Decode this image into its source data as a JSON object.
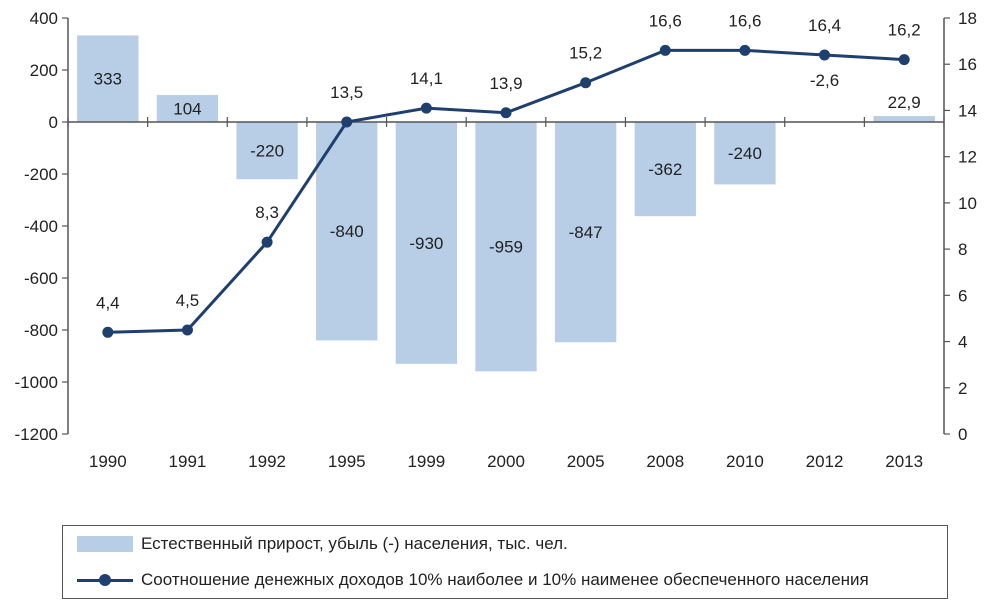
{
  "chart_data": {
    "type": "bar",
    "categories": [
      "1990",
      "1991",
      "1992",
      "1995",
      "1999",
      "2000",
      "2005",
      "2008",
      "2010",
      "2012",
      "2013"
    ],
    "series": [
      {
        "type": "bar",
        "axis": "left",
        "name": "Естественный прирост, убыль (-) населения, тыс. чел.",
        "values": [
          333,
          104,
          -220,
          -840,
          -930,
          -959,
          -847,
          -362,
          -240,
          -2.6,
          22.9
        ],
        "labels": [
          "333",
          "104",
          "-220",
          "-840",
          "-930",
          "-959",
          "-847",
          "-362",
          "-240",
          "-2,6",
          "22,9"
        ],
        "color": "#b8cde6"
      },
      {
        "type": "line",
        "axis": "right",
        "name": "Соотношение денежных доходов 10% наиболее и 10% наименее обеспеченного населения",
        "values": [
          4.4,
          4.5,
          8.3,
          13.5,
          14.1,
          13.9,
          15.2,
          16.6,
          16.6,
          16.4,
          16.2
        ],
        "labels": [
          "4,4",
          "4,5",
          "8,3",
          "13,5",
          "14,1",
          "13,9",
          "15,2",
          "16,6",
          "16,6",
          "16,4",
          "16,2"
        ],
        "color": "#1f3f6e"
      }
    ],
    "y_left": {
      "min": -1200,
      "max": 400,
      "ticks": [
        400,
        200,
        0,
        -200,
        -400,
        -600,
        -800,
        -1000,
        -1200
      ],
      "tick_labels": [
        "400",
        "200",
        "0",
        "-200",
        "-400",
        "-600",
        "-800",
        "-1000",
        "-1200"
      ]
    },
    "y_right": {
      "min": 0,
      "max": 18,
      "ticks": [
        18,
        16,
        14,
        12,
        10,
        8,
        6,
        4,
        2,
        0
      ],
      "tick_labels": [
        "18",
        "16",
        "14",
        "12",
        "10",
        "8",
        "6",
        "4",
        "2",
        "0"
      ]
    },
    "grid": false,
    "legend_position": "bottom"
  }
}
